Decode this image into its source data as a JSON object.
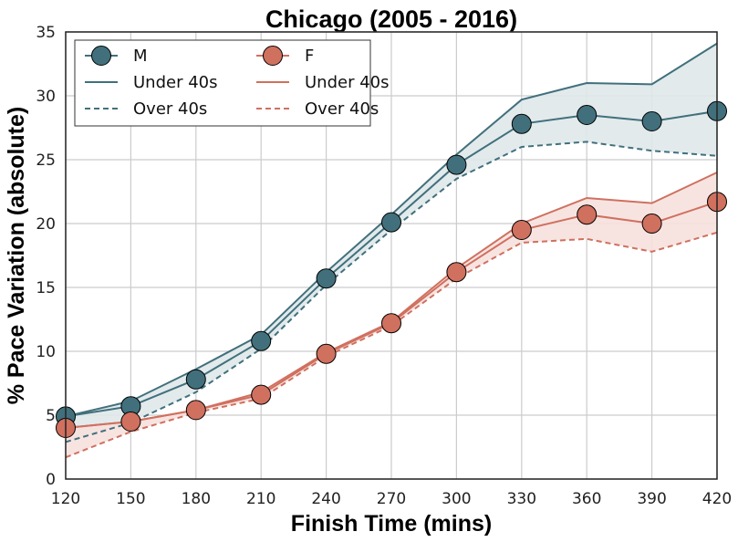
{
  "chart_data": {
    "type": "line",
    "title": "Chicago (2005 - 2016)",
    "xlabel": "Finish Time (mins)",
    "ylabel": "% Pace Variation (absolute)",
    "x": [
      120,
      150,
      180,
      210,
      240,
      270,
      300,
      330,
      360,
      390,
      420
    ],
    "xlim": [
      120,
      420
    ],
    "ylim": [
      0,
      35
    ],
    "xticks": [
      "120",
      "150",
      "180",
      "210",
      "240",
      "270",
      "300",
      "330",
      "360",
      "390",
      "420"
    ],
    "yticks": [
      "0",
      "5",
      "10",
      "15",
      "20",
      "25",
      "30",
      "35"
    ],
    "grid": true,
    "legend_position": "top-left",
    "series": [
      {
        "name": "M",
        "color": "#41707c",
        "fill": "#dfe8ea",
        "overall": [
          4.9,
          5.7,
          7.8,
          10.8,
          15.7,
          20.1,
          24.6,
          27.8,
          28.5,
          28.0,
          28.8
        ],
        "under_40s": [
          4.9,
          6.1,
          8.6,
          11.3,
          16.2,
          20.7,
          25.4,
          29.7,
          31.0,
          30.9,
          34.1
        ],
        "over_40s": [
          2.9,
          4.4,
          6.8,
          10.2,
          15.2,
          19.5,
          23.5,
          26.0,
          26.4,
          25.7,
          25.3
        ]
      },
      {
        "name": "F",
        "color": "#d0705f",
        "fill": "#f6e1de",
        "overall": [
          4.0,
          4.5,
          5.4,
          6.6,
          9.8,
          12.2,
          16.2,
          19.5,
          20.7,
          20.0,
          21.7
        ],
        "under_40s": [
          4.0,
          4.5,
          5.4,
          6.8,
          9.9,
          12.3,
          16.5,
          20.0,
          22.0,
          21.6,
          24.0
        ],
        "over_40s": [
          1.7,
          3.7,
          5.2,
          6.3,
          9.6,
          12.0,
          15.7,
          18.5,
          18.8,
          17.8,
          19.3
        ]
      }
    ],
    "legend": {
      "under_label": "Under 40s",
      "over_label": "Over 40s"
    }
  }
}
